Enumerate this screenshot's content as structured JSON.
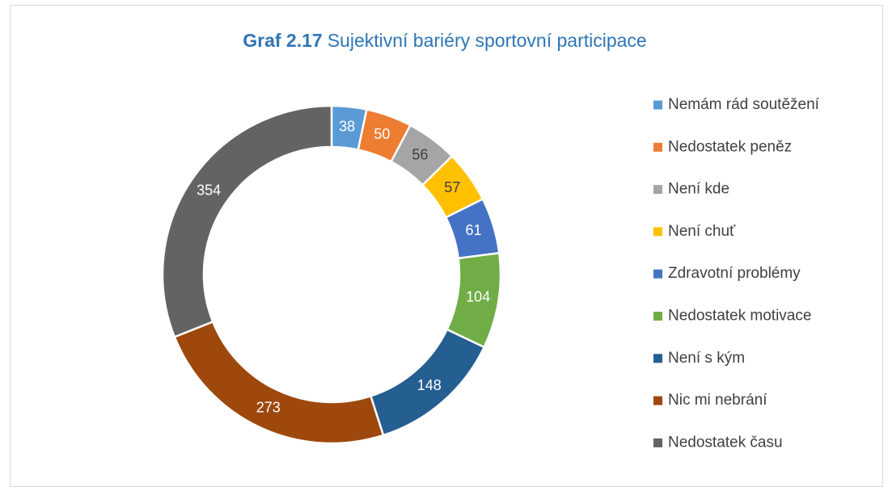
{
  "chart_data": {
    "type": "donut",
    "title_prefix": "Graf 2.17",
    "title": "Sujektivní bariéry sportovní participace",
    "categories": [
      "Nemám rád soutěžení",
      "Nedostatek peněz",
      "Není kde",
      "Není chuť",
      "Zdravotní problémy",
      "Nedostatek motivace",
      "Není s kým",
      "Nic mi nebrání",
      "Nedostatek času"
    ],
    "values": [
      38,
      50,
      56,
      57,
      61,
      104,
      148,
      273,
      354
    ],
    "colors": [
      "#5b9bd5",
      "#ed7d31",
      "#a5a5a5",
      "#ffc000",
      "#4472c4",
      "#70ad47",
      "#255e91",
      "#9e480e",
      "#636363"
    ],
    "legend": "right"
  }
}
